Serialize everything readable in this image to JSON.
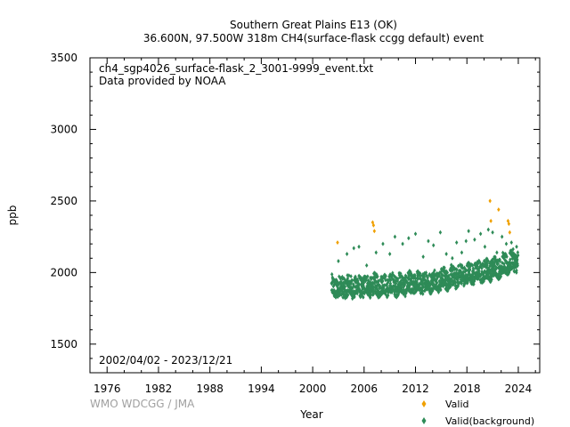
{
  "chart_data": {
    "type": "scatter",
    "title": "Southern Great Plains E13 (OK)",
    "subtitle": "36.600N, 97.500W 318m    CH4(surface-flask ccgg default) event",
    "xlabel": "Year",
    "ylabel": "ppb",
    "xlim": [
      1974,
      2026.5
    ],
    "ylim": [
      1300,
      3500
    ],
    "xticks": [
      "1976",
      "1982",
      "1988",
      "1994",
      "2000",
      "2006",
      "2012",
      "2018",
      "2024"
    ],
    "xtick_values": [
      1976,
      1982,
      1988,
      1994,
      2000,
      2006,
      2012,
      2018,
      2024
    ],
    "yticks": [
      "1500",
      "2000",
      "2500",
      "3000",
      "3500"
    ],
    "ytick_values": [
      1500,
      2000,
      2500,
      3000,
      3500
    ],
    "grid": false,
    "annotations": {
      "filename": "ch4_sgp4026_surface-flask_2_3001-9999_event.txt",
      "provider": "Data provided by NOAA",
      "date_range": "2002/04/02 - 2023/12/21"
    },
    "series": [
      {
        "name": "Valid",
        "color": "#f0a000",
        "marker": "diamond",
        "points": [
          [
            2002.9,
            2210
          ],
          [
            2007.0,
            2350
          ],
          [
            2007.1,
            2330
          ],
          [
            2007.2,
            2290
          ],
          [
            2020.7,
            2500
          ],
          [
            2020.8,
            2360
          ],
          [
            2021.7,
            2440
          ],
          [
            2022.8,
            2360
          ],
          [
            2022.9,
            2340
          ],
          [
            2023.0,
            2280
          ]
        ]
      },
      {
        "name": "Valid(background)",
        "color": "#2e8b57",
        "marker": "diamond",
        "trend": {
          "x": [
            2002.2,
            2004,
            2006,
            2008,
            2010,
            2012,
            2014,
            2016,
            2018,
            2020,
            2022,
            2023.97
          ],
          "y": [
            1880,
            1885,
            1890,
            1895,
            1900,
            1910,
            1925,
            1945,
            1975,
            1995,
            2030,
            2075
          ]
        },
        "spread_low": 55,
        "spread_high": 90,
        "points": [
          [
            2003.0,
            2080
          ],
          [
            2004.0,
            2130
          ],
          [
            2004.8,
            2170
          ],
          [
            2005.4,
            2180
          ],
          [
            2006.3,
            2050
          ],
          [
            2007.4,
            2140
          ],
          [
            2008.2,
            2200
          ],
          [
            2009.0,
            2130
          ],
          [
            2009.6,
            2250
          ],
          [
            2010.5,
            2200
          ],
          [
            2011.2,
            2240
          ],
          [
            2012.0,
            2270
          ],
          [
            2012.9,
            2110
          ],
          [
            2013.5,
            2220
          ],
          [
            2014.1,
            2190
          ],
          [
            2014.9,
            2280
          ],
          [
            2015.6,
            2130
          ],
          [
            2016.3,
            2100
          ],
          [
            2016.8,
            2210
          ],
          [
            2017.4,
            2140
          ],
          [
            2017.9,
            2220
          ],
          [
            2018.2,
            2290
          ],
          [
            2018.9,
            2230
          ],
          [
            2019.6,
            2270
          ],
          [
            2020.1,
            2180
          ],
          [
            2020.5,
            2300
          ],
          [
            2021.0,
            2280
          ],
          [
            2021.5,
            2140
          ],
          [
            2022.1,
            2250
          ],
          [
            2022.6,
            2200
          ],
          [
            2023.2,
            2210
          ],
          [
            2023.8,
            2180
          ]
        ]
      }
    ]
  },
  "footer": {
    "credit": "WMO WDCGG / JMA"
  },
  "legend": {
    "items": [
      {
        "label": "Valid",
        "color": "#f0a000"
      },
      {
        "label": "Valid(background)",
        "color": "#2e8b57"
      }
    ]
  }
}
